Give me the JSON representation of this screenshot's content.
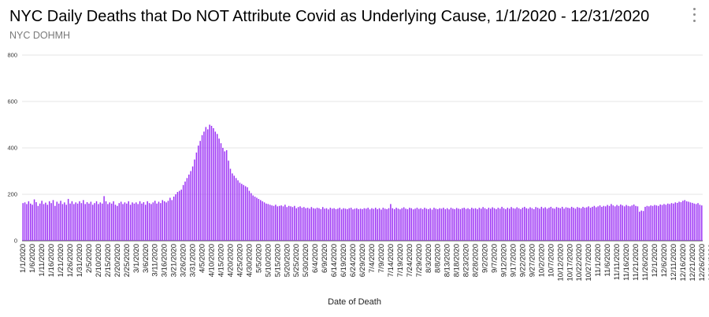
{
  "title": "NYC Daily Deaths that Do NOT Attribute Covid as Underlying Cause, 1/1/2020 - 12/31/2020",
  "subtitle": "NYC DOHMH",
  "menu_icon": "vertical-dots-icon",
  "chart_data": {
    "type": "bar",
    "title": "NYC Daily Deaths that Do NOT Attribute Covid as Underlying Cause, 1/1/2020 - 12/31/2020",
    "subtitle": "NYC DOHMH",
    "xlabel": "Date of Death",
    "ylabel": "",
    "ylim": [
      0,
      800
    ],
    "yticks": [
      0,
      200,
      400,
      600,
      800
    ],
    "grid": true,
    "bar_color": "#9b30f5",
    "x_tick_labels": [
      "1/1/2020",
      "1/6/2020",
      "1/11/2020",
      "1/16/2020",
      "1/21/2020",
      "1/26/2020",
      "1/31/2020",
      "2/5/2020",
      "2/10/2020",
      "2/15/2020",
      "2/20/2020",
      "2/25/2020",
      "3/1/2020",
      "3/6/2020",
      "3/11/2020",
      "3/16/2020",
      "3/21/2020",
      "3/26/2020",
      "3/31/2020",
      "4/5/2020",
      "4/10/2020",
      "4/15/2020",
      "4/20/2020",
      "4/25/2020",
      "4/30/2020",
      "5/5/2020",
      "5/10/2020",
      "5/15/2020",
      "5/20/2020",
      "5/25/2020",
      "5/30/2020",
      "6/4/2020",
      "6/9/2020",
      "6/14/2020",
      "6/19/2020",
      "6/24/2020",
      "6/29/2020",
      "7/4/2020",
      "7/9/2020",
      "7/14/2020",
      "7/19/2020",
      "7/24/2020",
      "7/29/2020",
      "8/3/2020",
      "8/8/2020",
      "8/13/2020",
      "8/18/2020",
      "8/23/2020",
      "8/28/2020",
      "9/2/2020",
      "9/7/2020",
      "9/12/2020",
      "9/17/2020",
      "9/22/2020",
      "9/27/2020",
      "10/2/2020",
      "10/7/2020",
      "10/12/2020",
      "10/17/2020",
      "10/22/2020",
      "10/27/2020",
      "11/1/2020",
      "11/6/2020",
      "11/11/2020",
      "11/16/2020",
      "11/21/2020",
      "11/26/2020",
      "12/1/2020",
      "12/6/2020",
      "12/11/2020",
      "12/16/2020",
      "12/21/2020",
      "12/26/2020",
      "12/31/2020"
    ],
    "period_averages": [
      {
        "start": "1/1/2020",
        "values": [
          162,
          165,
          158,
          170,
          160,
          155,
          178,
          166,
          150,
          160,
          172,
          158,
          164,
          155,
          170,
          162,
          175,
          150,
          168,
          160,
          172,
          158,
          165,
          155,
          180,
          160,
          170,
          158,
          165,
          160,
          170,
          162,
          175,
          158,
          166,
          160,
          168,
          155,
          162,
          170,
          158,
          165,
          160,
          192,
          170,
          158,
          165,
          160,
          170,
          155,
          150,
          162,
          168,
          158,
          165,
          160,
          170,
          155,
          165,
          160
        ]
      },
      {
        "start": "3/1/2020",
        "values": [
          165,
          158,
          170,
          160,
          166,
          155,
          170,
          162,
          158,
          165,
          172,
          160,
          168,
          162,
          175,
          170,
          165,
          172,
          185,
          175,
          190,
          200,
          210,
          215,
          220,
          240,
          255,
          270,
          285,
          300,
          320,
          350,
          380,
          410,
          430,
          455,
          470,
          490,
          480,
          500,
          495,
          485,
          470,
          460,
          440,
          420,
          400,
          385,
          390,
          345,
          310,
          290,
          280,
          270,
          260,
          250,
          245,
          240,
          235,
          230
        ]
      },
      {
        "start": "4/30/2020",
        "values": [
          215,
          205,
          195,
          190,
          185,
          180,
          175,
          170,
          165,
          160,
          158,
          155,
          152,
          150,
          155,
          148,
          150,
          152,
          148,
          155,
          145,
          150,
          148,
          145,
          150,
          140,
          145,
          148,
          142,
          145,
          140,
          142,
          138,
          145,
          140,
          138,
          142,
          140,
          136,
          145,
          138,
          140,
          135,
          142,
          138,
          140,
          136,
          138,
          142,
          135,
          140,
          138,
          136,
          140,
          142,
          135,
          138,
          140,
          136,
          138
        ]
      },
      {
        "start": "6/29/2020",
        "values": [
          136,
          140,
          138,
          142,
          135,
          140,
          137,
          142,
          136,
          140,
          134,
          142,
          138,
          136,
          140,
          158,
          140,
          136,
          142,
          138,
          135,
          140,
          144,
          138,
          136,
          142,
          140,
          135,
          138,
          142,
          137,
          140,
          136,
          142,
          138,
          136,
          140,
          134,
          142,
          138,
          136,
          140,
          138,
          142,
          136,
          140,
          135,
          142,
          138,
          136,
          141,
          138,
          136,
          140,
          142,
          137,
          140,
          136,
          142,
          138
        ]
      },
      {
        "start": "8/28/2020",
        "values": [
          140,
          136,
          142,
          138,
          145,
          140,
          136,
          142,
          138,
          144,
          140,
          136,
          142,
          138,
          146,
          140,
          136,
          142,
          138,
          145,
          140,
          138,
          144,
          140,
          136,
          142,
          146,
          140,
          138,
          144,
          140,
          136,
          145,
          142,
          138,
          146,
          140,
          144,
          138,
          142,
          146,
          140,
          138,
          145,
          142,
          140,
          146,
          138,
          144,
          142,
          140,
          146,
          142,
          138,
          145,
          142,
          140,
          146,
          142,
          144
        ]
      },
      {
        "start": "10/27/2020",
        "values": [
          148,
          142,
          146,
          150,
          144,
          148,
          152,
          146,
          150,
          148,
          154,
          150,
          158,
          152,
          148,
          154,
          150,
          156,
          152,
          148,
          154,
          150,
          148,
          152,
          156,
          150,
          148,
          125,
          130,
          128,
          146,
          150,
          148,
          152,
          150,
          154,
          152,
          150,
          156,
          154,
          158,
          155,
          160,
          158,
          162,
          160,
          165,
          163,
          168,
          166,
          172,
          175,
          170,
          168,
          165,
          163,
          160,
          158,
          162,
          155,
          152
        ]
      }
    ]
  }
}
